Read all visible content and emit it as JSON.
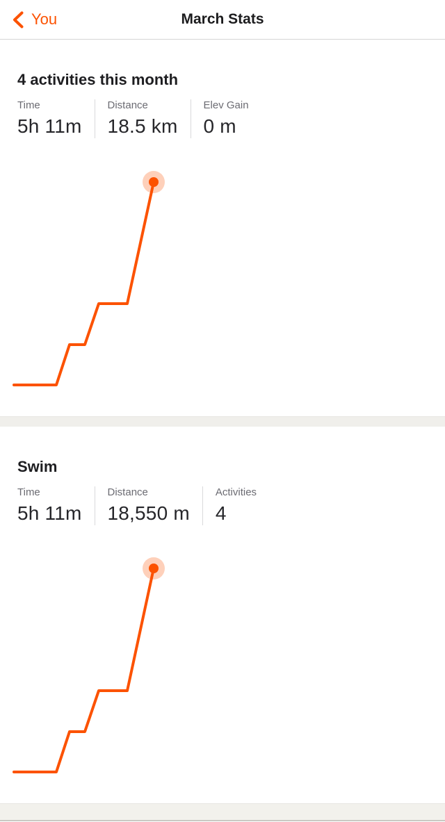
{
  "header": {
    "back_label": "You",
    "title": "March Stats"
  },
  "colors": {
    "accent_orange": "#fc5200",
    "marker_halo": "rgba(252,82,0,0.27)",
    "divider_band": "#f0efeb",
    "stat_label_gray": "#6b6b72",
    "text_dark": "#1e1e21"
  },
  "sections": [
    {
      "heading": "4 activities this month",
      "stats": [
        {
          "label": "Time",
          "value": "5h 11m"
        },
        {
          "label": "Distance",
          "value": "18.5 km"
        },
        {
          "label": "Elev Gain",
          "value": "0 m"
        }
      ]
    },
    {
      "heading": "Swim",
      "stats": [
        {
          "label": "Time",
          "value": "5h 11m"
        },
        {
          "label": "Distance",
          "value": "18,550 m"
        },
        {
          "label": "Activities",
          "value": "4"
        }
      ]
    }
  ],
  "chart_data": [
    {
      "type": "line",
      "title": "Cumulative distance this month (4 activities)",
      "xlabel": "",
      "ylabel": "",
      "axes_shown": false,
      "grid": false,
      "line_color": "#fc5200",
      "end_marker": "dot with translucent halo",
      "points": [
        [
          20,
          323
        ],
        [
          81,
          323
        ],
        [
          100,
          265
        ],
        [
          122,
          265
        ],
        [
          142,
          206
        ],
        [
          183,
          206
        ],
        [
          221,
          31
        ]
      ],
      "estimated_cumulative_km": [
        0,
        0,
        3.7,
        3.7,
        7.4,
        7.4,
        18.5
      ],
      "final_value": "18.5 km"
    },
    {
      "type": "line",
      "title": "Swim cumulative distance this month",
      "xlabel": "",
      "ylabel": "",
      "axes_shown": false,
      "grid": false,
      "line_color": "#fc5200",
      "end_marker": "dot with translucent halo",
      "points": [
        [
          20,
          323
        ],
        [
          81,
          323
        ],
        [
          100,
          265
        ],
        [
          122,
          265
        ],
        [
          142,
          206
        ],
        [
          183,
          206
        ],
        [
          221,
          30
        ]
      ],
      "estimated_cumulative_m": [
        0,
        0,
        3700,
        3700,
        7450,
        7450,
        18550
      ],
      "final_value": "18,550 m"
    }
  ]
}
